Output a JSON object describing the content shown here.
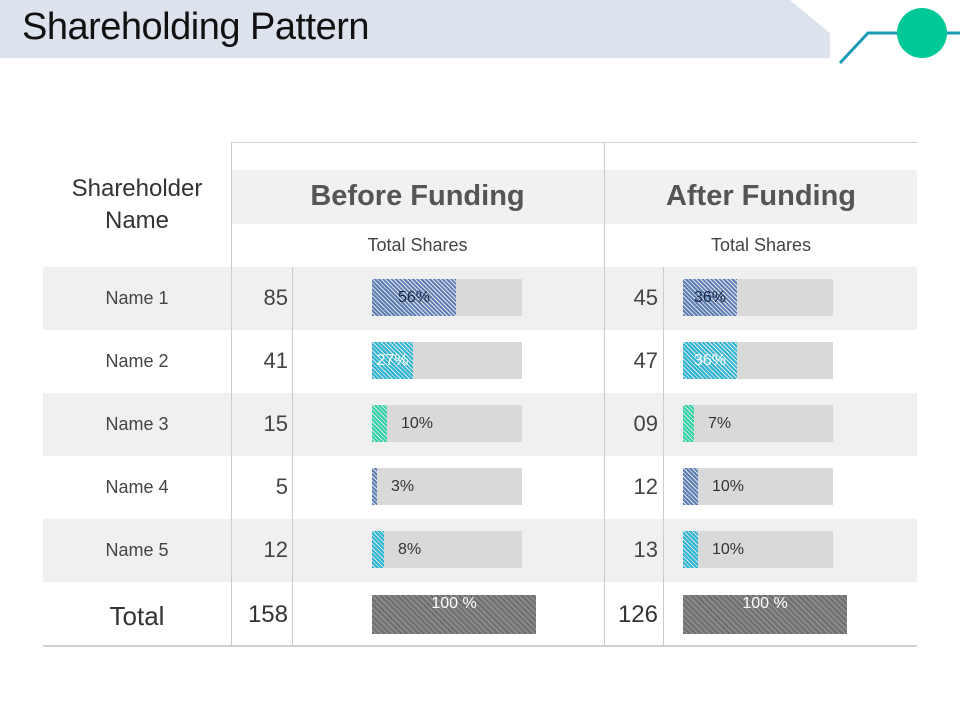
{
  "title": "Shareholding Pattern",
  "colors": {
    "accent": "#00c896",
    "line": "#1a9bb5"
  },
  "header": {
    "shareholder_label": "Shareholder Name",
    "before_label": "Before Funding",
    "after_label": "After Funding",
    "total_shares_label": "Total Shares"
  },
  "rows": [
    {
      "name": "Name 1",
      "before_shares": "85",
      "before_pct": 56,
      "before_pct_label": "56%",
      "after_shares": "45",
      "after_pct": 36,
      "after_pct_label": "36%"
    },
    {
      "name": "Name 2",
      "before_shares": "41",
      "before_pct": 27,
      "before_pct_label": "27%",
      "after_shares": "47",
      "after_pct": 36,
      "after_pct_label": "36%"
    },
    {
      "name": "Name 3",
      "before_shares": "15",
      "before_pct": 10,
      "before_pct_label": "10%",
      "after_shares": "09",
      "after_pct": 7,
      "after_pct_label": "7%"
    },
    {
      "name": "Name 4",
      "before_shares": "5",
      "before_pct": 3,
      "before_pct_label": "3%",
      "after_shares": "12",
      "after_pct": 10,
      "after_pct_label": "10%"
    },
    {
      "name": "Name 5",
      "before_shares": "12",
      "before_pct": 8,
      "before_pct_label": "8%",
      "after_shares": "13",
      "after_pct": 10,
      "after_pct_label": "10%"
    }
  ],
  "total": {
    "label": "Total",
    "before_shares": "158",
    "before_pct_label": "100 %",
    "after_shares": "126",
    "after_pct_label": "100 %"
  },
  "row_colors": [
    "#5b7fb5",
    "#2bb6d3",
    "#2cd3a7",
    "#5b7fb5",
    "#2bb6d3"
  ]
}
